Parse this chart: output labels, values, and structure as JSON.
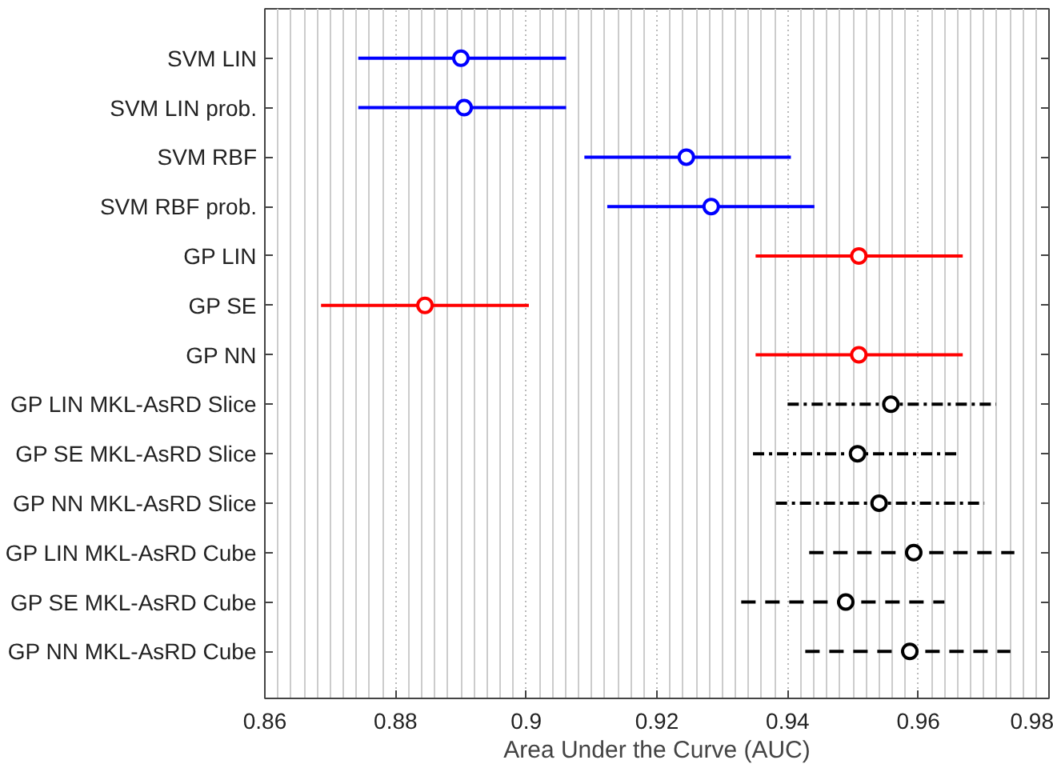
{
  "chart_data": {
    "type": "scatter",
    "orientation": "horizontal",
    "xlabel": "Area Under the Curve (AUC)",
    "categories": [
      "SVM LIN",
      "SVM LIN prob.",
      "SVM RBF",
      "SVM RBF prob.",
      "GP LIN",
      "GP SE",
      "GP NN",
      "GP LIN MKL-AsRD Slice",
      "GP SE MKL-AsRD Slice",
      "GP NN MKL-AsRD Slice",
      "GP LIN MKL-AsRD Cube",
      "GP SE MKL-AsRD Cube",
      "GP NN MKL-AsRD Cube"
    ],
    "series": [
      {
        "color": "#0000ff",
        "line_style": "solid",
        "values": [
          0.89,
          0.8905,
          0.9245,
          0.9283,
          null,
          null,
          null,
          null,
          null,
          null,
          null,
          null,
          null
        ],
        "errors": [
          [
            0.8743,
            0.9061
          ],
          [
            0.8743,
            0.9061
          ],
          [
            0.9089,
            0.9405
          ],
          [
            0.9124,
            0.9441
          ],
          null,
          null,
          null,
          null,
          null,
          null,
          null,
          null,
          null
        ]
      },
      {
        "color": "#ff0000",
        "line_style": "solid",
        "values": [
          null,
          null,
          null,
          null,
          0.9509,
          0.8845,
          0.9509,
          null,
          null,
          null,
          null,
          null,
          null
        ],
        "errors": [
          null,
          null,
          null,
          null,
          [
            0.9351,
            0.9668
          ],
          [
            0.8686,
            0.9004
          ],
          [
            0.9351,
            0.9668
          ],
          null,
          null,
          null,
          null,
          null,
          null
        ]
      },
      {
        "color": "#000000",
        "line_style": "dashdot",
        "values": [
          null,
          null,
          null,
          null,
          null,
          null,
          null,
          0.9558,
          0.9507,
          0.954,
          null,
          null,
          null
        ],
        "errors": [
          null,
          null,
          null,
          null,
          null,
          null,
          null,
          [
            0.94,
            0.9719
          ],
          [
            0.9347,
            0.9664
          ],
          [
            0.9382,
            0.9701
          ],
          null,
          null,
          null
        ]
      },
      {
        "color": "#000000",
        "line_style": "dashed",
        "values": [
          null,
          null,
          null,
          null,
          null,
          null,
          null,
          null,
          null,
          null,
          0.9593,
          0.9489,
          0.9587
        ],
        "errors": [
          null,
          null,
          null,
          null,
          null,
          null,
          null,
          null,
          null,
          null,
          [
            0.9433,
            0.9747
          ],
          [
            0.9329,
            0.964
          ],
          [
            0.9427,
            0.9741
          ]
        ]
      }
    ],
    "xlim": [
      0.86,
      0.98
    ],
    "xticks": [
      0.86,
      0.88,
      0.9,
      0.92,
      0.94,
      0.96,
      0.98
    ],
    "grid": "x",
    "marker": "circle"
  }
}
